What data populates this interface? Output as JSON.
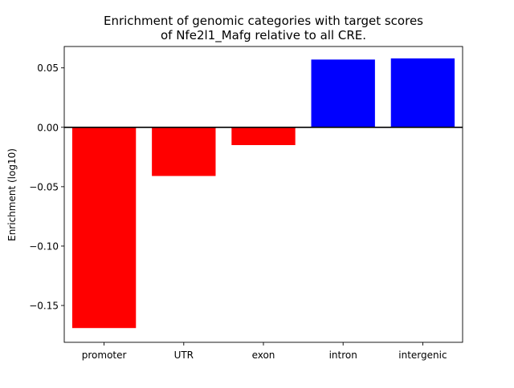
{
  "chart_data": {
    "type": "bar",
    "title_lines": [
      "Enrichment of genomic categories with target scores",
      "of Nfe2l1_Mafg relative to all CRE."
    ],
    "xlabel": "",
    "ylabel": "Enrichment (log10)",
    "categories": [
      "promoter",
      "UTR",
      "exon",
      "intron",
      "intergenic"
    ],
    "values": [
      -0.169,
      -0.041,
      -0.015,
      0.057,
      0.058
    ],
    "bar_colors": [
      "#ff0000",
      "#ff0000",
      "#ff0000",
      "#0000ff",
      "#0000ff"
    ],
    "ylim": [
      -0.181,
      0.068
    ],
    "yticks": [
      -0.15,
      -0.1,
      -0.05,
      0.0,
      0.05
    ],
    "ytick_labels": [
      "−0.15",
      "−0.10",
      "−0.05",
      "0.00",
      "0.05"
    ],
    "zero_line": true,
    "grid": false,
    "legend": "none"
  }
}
